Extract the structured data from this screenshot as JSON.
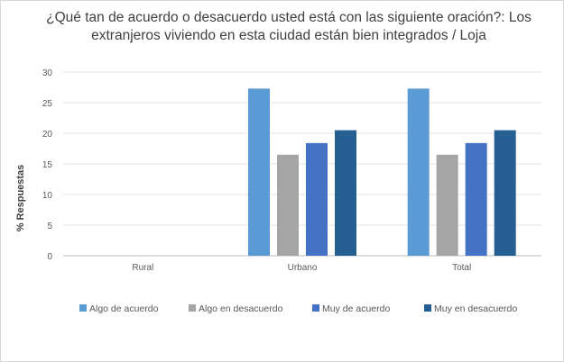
{
  "chart_data": {
    "type": "bar",
    "title_line1": "¿Qué tan de acuerdo o desacuerdo usted está con las siguiente oración?: Los",
    "title_line2": "extranjeros viviendo en esta ciudad están bien integrados / Loja",
    "xlabel": "",
    "ylabel": "% Respuestas",
    "ylim": [
      0,
      30
    ],
    "yticks": [
      0,
      5,
      10,
      15,
      20,
      25,
      30
    ],
    "categories": [
      "Rural",
      "Urbano",
      "Total"
    ],
    "series": [
      {
        "name": "Algo de acuerdo",
        "color": "#5b9bd5",
        "values": [
          0,
          27.3,
          27.3
        ]
      },
      {
        "name": "Algo en desacuerdo",
        "color": "#a5a5a5",
        "values": [
          0,
          16.5,
          16.5
        ]
      },
      {
        "name": "Muy de acuerdo",
        "color": "#4472c4",
        "values": [
          0,
          18.4,
          18.4
        ]
      },
      {
        "name": "Muy en desacuerdo",
        "color": "#255e91",
        "values": [
          0,
          20.5,
          20.5
        ]
      }
    ],
    "grid": true,
    "legend_position": "bottom"
  }
}
